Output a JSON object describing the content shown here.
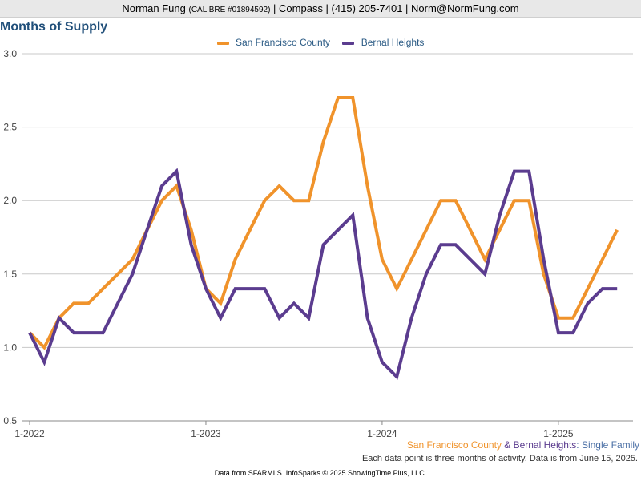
{
  "header": {
    "name": "Norman Fung",
    "license": "(CAL BRE #01894592)",
    "rest": "| Compass | (415) 205-7401 | Norm@NormFung.com"
  },
  "chart_data": {
    "type": "line",
    "title": "Months of Supply",
    "ylim": [
      0.5,
      3.0
    ],
    "yticks": [
      "0.5",
      "1.0",
      "1.5",
      "2.0",
      "2.5",
      "3.0"
    ],
    "xticks": [
      {
        "label": "1-2022",
        "index": 0
      },
      {
        "label": "1-2023",
        "index": 12
      },
      {
        "label": "1-2024",
        "index": 24
      },
      {
        "label": "1-2025",
        "index": 36
      }
    ],
    "grid": true,
    "legend_position": "top-center",
    "x": [
      "2022-01",
      "2022-02",
      "2022-03",
      "2022-04",
      "2022-05",
      "2022-06",
      "2022-07",
      "2022-08",
      "2022-09",
      "2022-10",
      "2022-11",
      "2022-12",
      "2023-01",
      "2023-02",
      "2023-03",
      "2023-04",
      "2023-05",
      "2023-06",
      "2023-07",
      "2023-08",
      "2023-09",
      "2023-10",
      "2023-11",
      "2023-12",
      "2024-01",
      "2024-02",
      "2024-03",
      "2024-04",
      "2024-05",
      "2024-06",
      "2024-07",
      "2024-08",
      "2024-09",
      "2024-10",
      "2024-11",
      "2024-12",
      "2025-01",
      "2025-02",
      "2025-03",
      "2025-04",
      "2025-05"
    ],
    "series": [
      {
        "name": "San Francisco County",
        "color": "#f0932b",
        "values": [
          1.1,
          1.0,
          1.2,
          1.3,
          1.3,
          1.4,
          1.5,
          1.6,
          1.8,
          2.0,
          2.1,
          1.8,
          1.4,
          1.3,
          1.6,
          1.8,
          2.0,
          2.1,
          2.0,
          2.0,
          2.4,
          2.7,
          2.7,
          2.1,
          1.6,
          1.4,
          1.6,
          1.8,
          2.0,
          2.0,
          1.8,
          1.6,
          1.8,
          2.0,
          2.0,
          1.5,
          1.2,
          1.2,
          1.4,
          1.6,
          1.8
        ]
      },
      {
        "name": "Bernal Heights",
        "color": "#5b3c8f",
        "values": [
          1.1,
          0.9,
          1.2,
          1.1,
          1.1,
          1.1,
          1.3,
          1.5,
          1.8,
          2.1,
          2.2,
          1.7,
          1.4,
          1.2,
          1.4,
          1.4,
          1.4,
          1.2,
          1.3,
          1.2,
          1.7,
          1.8,
          1.9,
          1.2,
          0.9,
          0.8,
          1.2,
          1.5,
          1.7,
          1.7,
          1.6,
          1.5,
          1.9,
          2.2,
          2.2,
          1.6,
          1.1,
          1.1,
          1.3,
          1.4,
          1.4
        ]
      }
    ]
  },
  "subtitle": {
    "part1": "San Francisco County",
    "amp": " & ",
    "part2": "Bernal Heights",
    "part3": ": Single Family",
    "color1": "#f0932b",
    "color2": "#5b3c8f",
    "color3": "#4a6fa5"
  },
  "note": "Each data point is three months of activity. Data is from June 15, 2025.",
  "footer": "Data from SFARMLS. InfoSparks © 2025 ShowingTime Plus, LLC."
}
